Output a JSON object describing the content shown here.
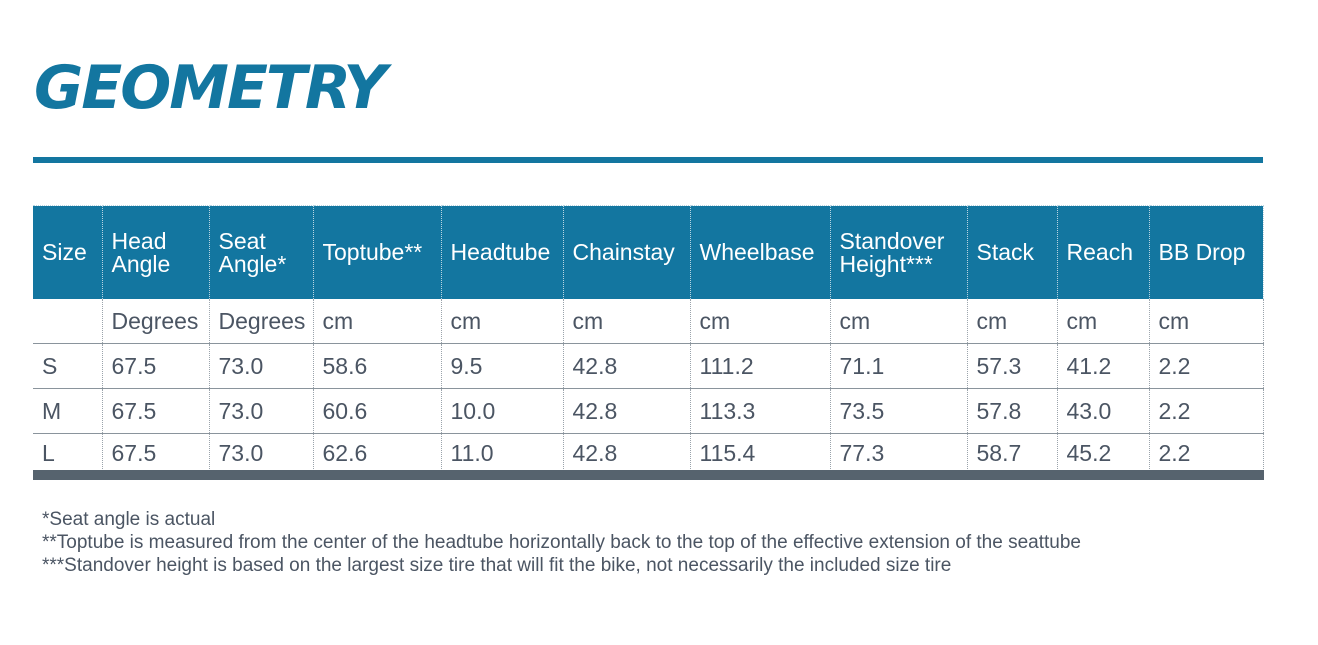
{
  "title": "GEOMETRY",
  "colors": {
    "accent": "#1376a0",
    "text": "#4b5563",
    "table_bottom_bar": "#56636e"
  },
  "table": {
    "headers": [
      [
        "Size"
      ],
      [
        "Head",
        "Angle"
      ],
      [
        "Seat",
        "Angle*"
      ],
      [
        "Toptube**"
      ],
      [
        "Headtube"
      ],
      [
        "Chainstay"
      ],
      [
        "Wheelbase"
      ],
      [
        "Standover",
        "Height***"
      ],
      [
        "Stack"
      ],
      [
        "Reach"
      ],
      [
        "BB Drop"
      ]
    ],
    "units": [
      "",
      "Degrees",
      "Degrees",
      "cm",
      "cm",
      "cm",
      "cm",
      "cm",
      "cm",
      "cm",
      "cm"
    ],
    "rows": [
      [
        "S",
        "67.5",
        "73.0",
        "58.6",
        "9.5",
        "42.8",
        "111.2",
        "71.1",
        "57.3",
        "41.2",
        "2.2"
      ],
      [
        "M",
        "67.5",
        "73.0",
        "60.6",
        "10.0",
        "42.8",
        "113.3",
        "73.5",
        "57.8",
        "43.0",
        "2.2"
      ],
      [
        "L",
        "67.5",
        "73.0",
        "62.6",
        "11.0",
        "42.8",
        "115.4",
        "77.3",
        "58.7",
        "45.2",
        "2.2"
      ]
    ]
  },
  "footnotes": [
    "*Seat angle is actual",
    "**Toptube is measured from the center of the headtube horizontally back to the top of the effective extension of the seattube",
    "***Standover height is based on the largest size tire that will fit the bike, not necessarily the included size tire"
  ]
}
